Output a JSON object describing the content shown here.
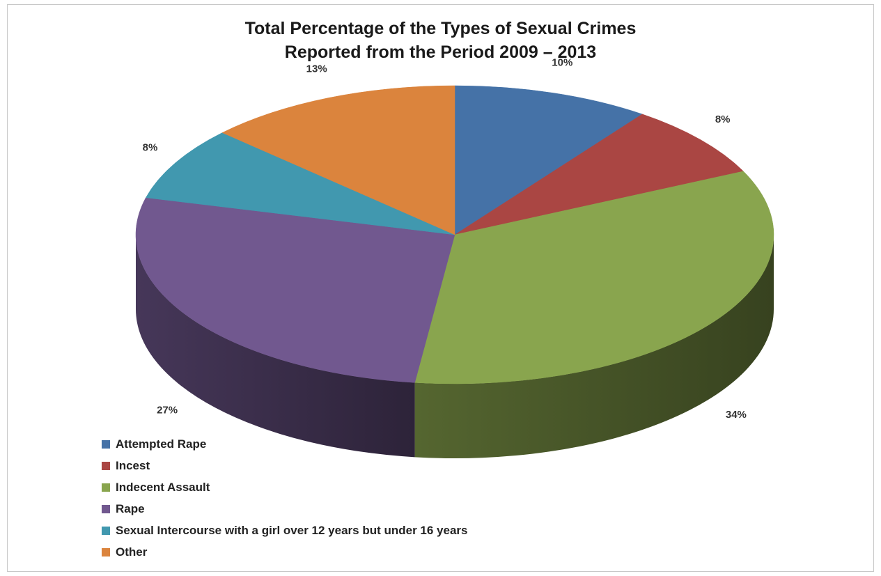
{
  "chart_data": {
    "type": "pie",
    "title_lines": [
      "Total Percentage of the Types of Sexual  Crimes",
      "Reported from the Period 2009 – 2013"
    ],
    "categories": [
      "Attempted Rape",
      "Incest",
      "Indecent Assault",
      "Rape",
      "Sexual Intercourse with a girl over 12 years but under 16 years",
      "Other"
    ],
    "values": [
      10,
      8,
      34,
      27,
      8,
      13
    ],
    "data_labels": [
      "10%",
      "8%",
      "34%",
      "27%",
      "8%",
      "13%"
    ],
    "colors": [
      "#4572a7",
      "#aa4643",
      "#89a54e",
      "#71588f",
      "#4198af",
      "#db843d"
    ],
    "start": "12 o'clock",
    "direction": "clockwise",
    "style": "3d",
    "legend_position": "bottom-left"
  }
}
